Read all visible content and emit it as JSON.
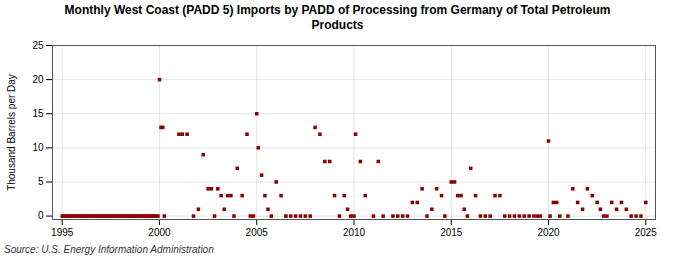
{
  "chart_data": {
    "type": "scatter",
    "title": "Monthly West Coast (PADD 5) Imports by PADD of Processing from Germany of Total Petroleum\nProducts",
    "ylabel": "Thousand Barrels per Day",
    "source": "Source: U.S. Energy Information Administration",
    "color": "#8b0000",
    "marker": "square",
    "grid": true,
    "xlim": [
      1994.5,
      2025.5
    ],
    "ylim": [
      -0.5,
      25
    ],
    "xticks": [
      1995,
      2000,
      2005,
      2010,
      2015,
      2020,
      2025
    ],
    "yticks": [
      0,
      5,
      10,
      15,
      20,
      25
    ],
    "x": [
      1995.0,
      1995.08,
      1995.17,
      1995.25,
      1995.33,
      1995.42,
      1995.5,
      1995.58,
      1995.67,
      1995.75,
      1995.83,
      1995.92,
      1996.0,
      1996.08,
      1996.17,
      1996.25,
      1996.33,
      1996.42,
      1996.5,
      1996.58,
      1996.67,
      1996.75,
      1996.83,
      1996.92,
      1997.0,
      1997.08,
      1997.17,
      1997.25,
      1997.33,
      1997.42,
      1997.5,
      1997.58,
      1997.67,
      1997.75,
      1997.83,
      1997.92,
      1998.0,
      1998.08,
      1998.17,
      1998.25,
      1998.33,
      1998.42,
      1998.5,
      1998.58,
      1998.67,
      1998.75,
      1998.83,
      1998.92,
      1999.0,
      1999.08,
      1999.17,
      1999.25,
      1999.33,
      1999.42,
      1999.5,
      1999.58,
      1999.67,
      1999.75,
      1999.83,
      1999.92,
      2000.0,
      2000.08,
      2000.17,
      2000.25,
      2001.0,
      2001.17,
      2001.42,
      2001.75,
      2002.0,
      2002.25,
      2002.5,
      2002.67,
      2002.83,
      2003.0,
      2003.17,
      2003.33,
      2003.5,
      2003.67,
      2003.83,
      2004.0,
      2004.25,
      2004.5,
      2004.67,
      2004.83,
      2005.0,
      2005.08,
      2005.25,
      2005.42,
      2005.58,
      2005.75,
      2006.0,
      2006.25,
      2006.5,
      2006.75,
      2007.0,
      2007.25,
      2007.5,
      2007.75,
      2008.0,
      2008.25,
      2008.5,
      2008.75,
      2009.0,
      2009.25,
      2009.5,
      2009.67,
      2009.83,
      2010.0,
      2010.08,
      2010.33,
      2010.58,
      2011.0,
      2011.25,
      2011.5,
      2012.0,
      2012.25,
      2012.5,
      2012.75,
      2013.0,
      2013.25,
      2013.5,
      2013.75,
      2014.0,
      2014.25,
      2014.5,
      2014.67,
      2015.0,
      2015.17,
      2015.33,
      2015.5,
      2015.67,
      2015.83,
      2016.0,
      2016.25,
      2016.5,
      2016.75,
      2017.0,
      2017.25,
      2017.5,
      2017.75,
      2018.0,
      2018.25,
      2018.5,
      2018.75,
      2019.0,
      2019.25,
      2019.42,
      2019.58,
      2020.0,
      2020.08,
      2020.25,
      2020.42,
      2020.58,
      2021.0,
      2021.25,
      2021.5,
      2021.75,
      2022.0,
      2022.25,
      2022.5,
      2022.67,
      2022.83,
      2023.0,
      2023.25,
      2023.5,
      2023.75,
      2024.0,
      2024.25,
      2024.5,
      2024.75,
      2025.0
    ],
    "values": [
      0,
      0,
      0,
      0,
      0,
      0,
      0,
      0,
      0,
      0,
      0,
      0,
      0,
      0,
      0,
      0,
      0,
      0,
      0,
      0,
      0,
      0,
      0,
      0,
      0,
      0,
      0,
      0,
      0,
      0,
      0,
      0,
      0,
      0,
      0,
      0,
      0,
      0,
      0,
      0,
      0,
      0,
      0,
      0,
      0,
      0,
      0,
      0,
      0,
      0,
      0,
      0,
      0,
      0,
      0,
      0,
      0,
      0,
      0,
      0,
      20,
      13,
      13,
      0,
      12,
      12,
      12,
      0,
      1,
      9,
      4,
      4,
      0,
      4,
      3,
      1,
      3,
      3,
      0,
      7,
      3,
      12,
      0,
      0,
      15,
      10,
      6,
      3,
      1,
      0,
      5,
      3,
      0,
      0,
      0,
      0,
      0,
      0,
      13,
      12,
      8,
      8,
      3,
      0,
      3,
      1,
      0,
      0,
      12,
      8,
      3,
      0,
      8,
      0,
      0,
      0,
      0,
      0,
      2,
      2,
      4,
      0,
      1,
      4,
      3,
      0,
      5,
      5,
      3,
      3,
      1,
      0,
      7,
      3,
      0,
      0,
      0,
      3,
      3,
      0,
      0,
      0,
      0,
      0,
      0,
      0,
      0,
      0,
      11,
      0,
      2,
      2,
      0,
      0,
      4,
      2,
      1,
      4,
      3,
      2,
      1,
      0,
      0,
      2,
      1,
      2,
      1,
      0,
      0,
      0,
      2
    ]
  }
}
